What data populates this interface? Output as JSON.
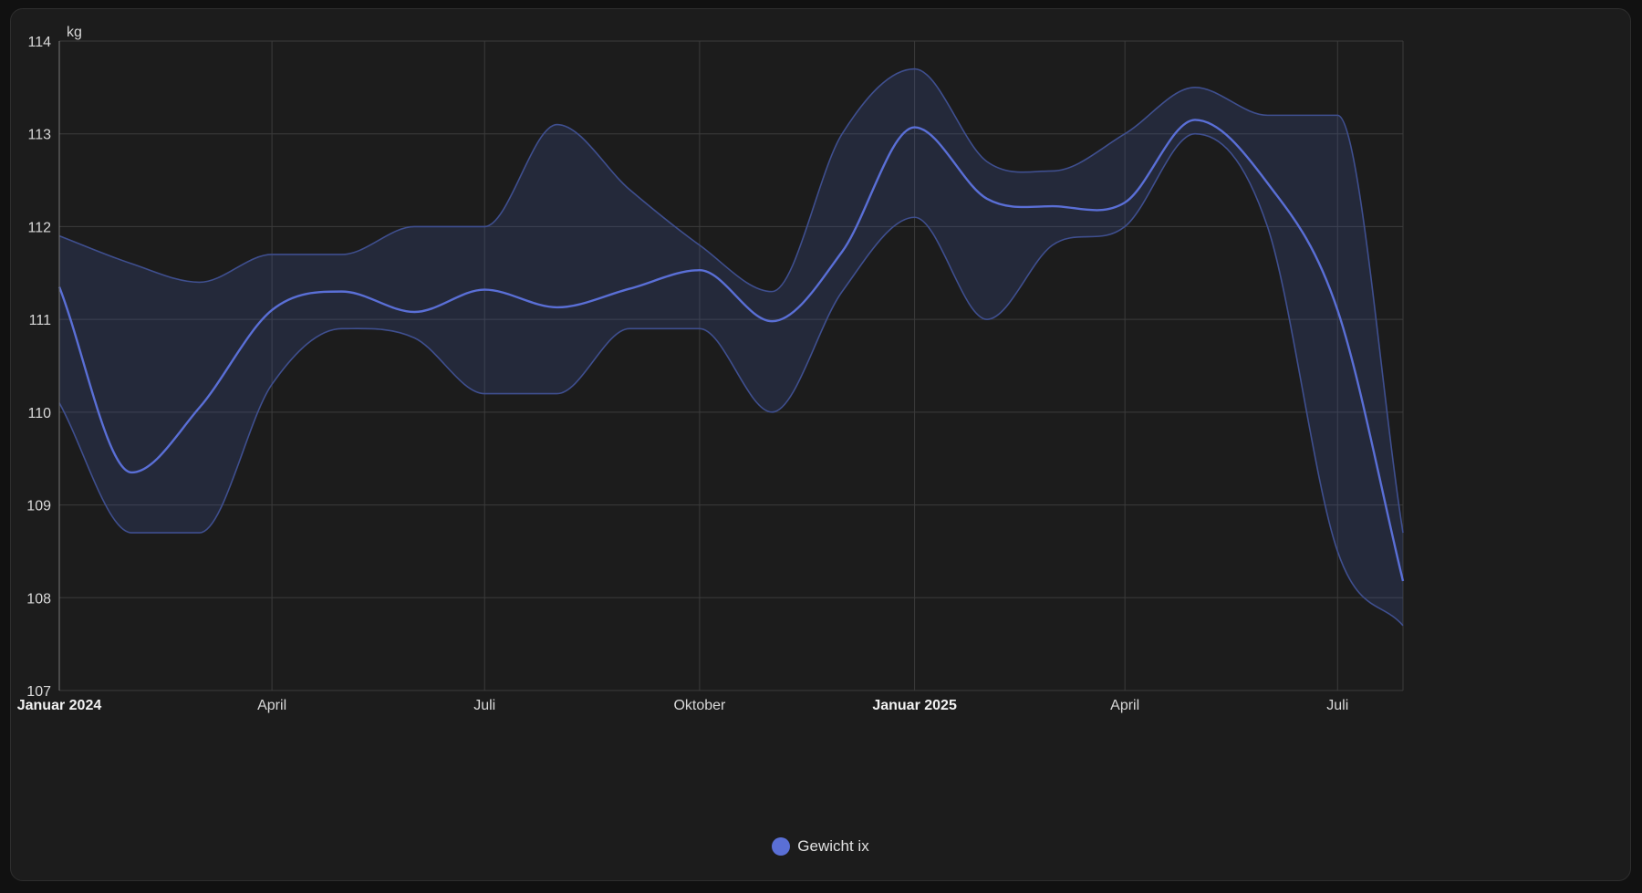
{
  "chart_data": {
    "type": "area",
    "y_unit": "kg",
    "ylim": [
      107,
      114
    ],
    "yticks": [
      107,
      108,
      109,
      110,
      111,
      112,
      113,
      114
    ],
    "xlim": [
      "2024-01-01",
      "2025-07-29"
    ],
    "xticks": [
      {
        "date": "2024-01-01",
        "label": "Januar 2024",
        "bold": true
      },
      {
        "date": "2024-04-01",
        "label": "April",
        "bold": false
      },
      {
        "date": "2024-07-01",
        "label": "Juli",
        "bold": false
      },
      {
        "date": "2024-10-01",
        "label": "Oktober",
        "bold": false
      },
      {
        "date": "2025-01-01",
        "label": "Januar 2025",
        "bold": true
      },
      {
        "date": "2025-04-01",
        "label": "April",
        "bold": false
      },
      {
        "date": "2025-07-01",
        "label": "Juli",
        "bold": false
      }
    ],
    "grid": true,
    "legend_position": "bottom-center",
    "colors": {
      "mean": "#5a6fd6",
      "band_edge": "#3f4f8f",
      "band_fill": "rgba(70,90,170,0.22)"
    },
    "series": [
      {
        "name": "Gewicht ix",
        "points": [
          {
            "x": "2024-01-01",
            "mean": 111.35,
            "max": 111.9,
            "min": 110.1
          },
          {
            "x": "2024-02-01",
            "mean": 109.35,
            "max": 111.6,
            "min": 108.7
          },
          {
            "x": "2024-03-01",
            "mean": 110.05,
            "max": 111.4,
            "min": 108.7
          },
          {
            "x": "2024-04-01",
            "mean": 111.1,
            "max": 111.7,
            "min": 110.3
          },
          {
            "x": "2024-05-01",
            "mean": 111.3,
            "max": 111.7,
            "min": 110.9
          },
          {
            "x": "2024-06-01",
            "mean": 111.08,
            "max": 112.0,
            "min": 110.8
          },
          {
            "x": "2024-07-01",
            "mean": 111.32,
            "max": 112.0,
            "min": 110.2
          },
          {
            "x": "2024-08-01",
            "mean": 111.13,
            "max": 113.1,
            "min": 110.2
          },
          {
            "x": "2024-09-01",
            "mean": 111.33,
            "max": 112.4,
            "min": 110.9
          },
          {
            "x": "2024-10-01",
            "mean": 111.53,
            "max": 111.8,
            "min": 110.9
          },
          {
            "x": "2024-11-01",
            "mean": 110.98,
            "max": 111.3,
            "min": 110.0
          },
          {
            "x": "2024-12-01",
            "mean": 111.73,
            "max": 113.0,
            "min": 111.3
          },
          {
            "x": "2025-01-01",
            "mean": 113.07,
            "max": 113.7,
            "min": 112.1
          },
          {
            "x": "2025-02-01",
            "mean": 112.3,
            "max": 112.7,
            "min": 111.0
          },
          {
            "x": "2025-03-01",
            "mean": 112.22,
            "max": 112.6,
            "min": 111.8
          },
          {
            "x": "2025-04-01",
            "mean": 112.26,
            "max": 113.0,
            "min": 112.0
          },
          {
            "x": "2025-05-01",
            "mean": 113.15,
            "max": 113.5,
            "min": 113.0
          },
          {
            "x": "2025-06-01",
            "mean": 112.47,
            "max": 113.2,
            "min": 112.0
          },
          {
            "x": "2025-07-01",
            "mean": 111.1,
            "max": 113.2,
            "min": 108.5
          },
          {
            "x": "2025-07-29",
            "mean": 108.18,
            "max": 108.7,
            "min": 107.7
          }
        ]
      }
    ]
  },
  "legend": {
    "label": "Gewicht ix"
  }
}
